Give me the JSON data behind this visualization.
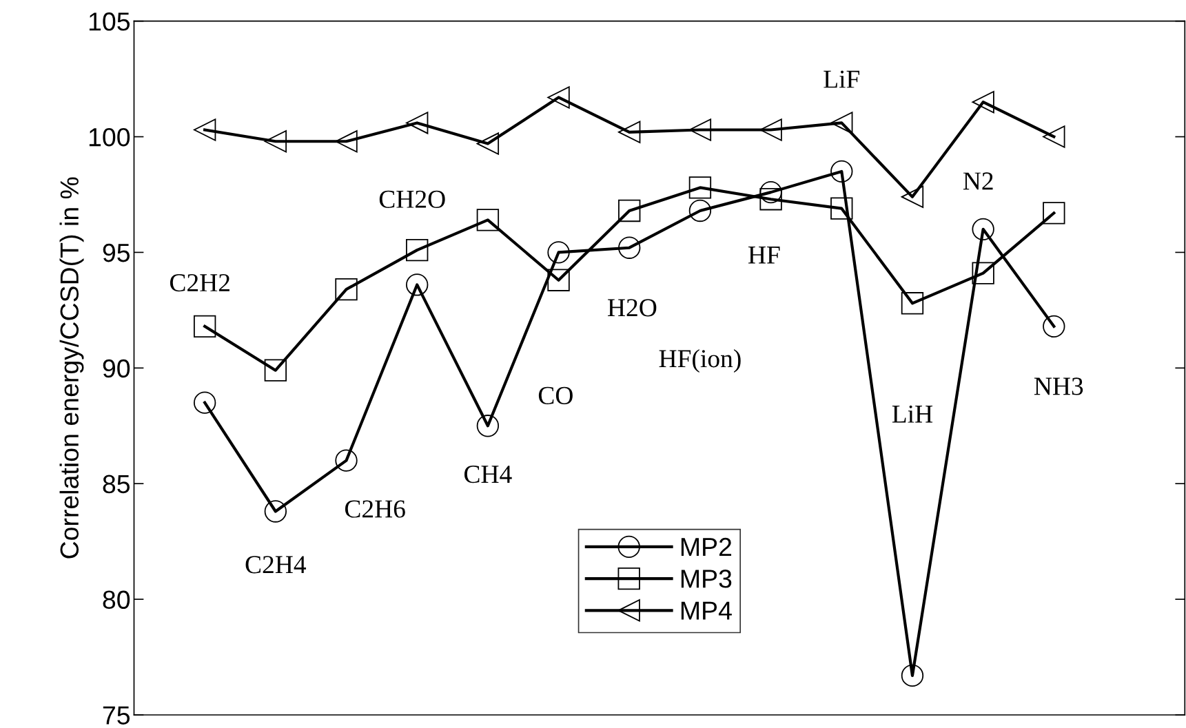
{
  "chart_data": {
    "type": "line",
    "ylabel": "Correlation energy/CCSD(T) in %",
    "categories": [
      null,
      null,
      null,
      null,
      null,
      null,
      null,
      null,
      null,
      null,
      null,
      null,
      null
    ],
    "series": [
      {
        "name": "MP2",
        "color": "#000000",
        "marker": "circle",
        "values": [
          88.5,
          83.8,
          86.0,
          93.6,
          87.5,
          95.0,
          95.2,
          96.8,
          97.6,
          98.5,
          76.7,
          96.0,
          91.8
        ]
      },
      {
        "name": "MP3",
        "color": "#000000",
        "marker": "square",
        "values": [
          91.8,
          89.9,
          93.4,
          95.1,
          96.4,
          93.8,
          96.8,
          97.8,
          97.3,
          96.9,
          92.8,
          94.1,
          96.7
        ]
      },
      {
        "name": "MP4",
        "color": "#000000",
        "marker": "triangle",
        "values": [
          100.3,
          99.8,
          99.8,
          100.6,
          99.7,
          101.7,
          100.2,
          100.3,
          100.3,
          100.6,
          97.4,
          101.5,
          100.0
        ]
      }
    ],
    "annotations": [
      "C2H2",
      "C2H4",
      "C2H6",
      "CH2O",
      "CH4",
      "CO",
      "H2O",
      "HF(ion)",
      "HF",
      "LiF",
      "LiH",
      "N2",
      "NH3"
    ],
    "ylim": [
      75,
      105
    ],
    "yticks": [
      75,
      80,
      85,
      90,
      95,
      100,
      105
    ],
    "grid": false,
    "legend": "bottom",
    "line_style": "solid",
    "tick_labels": "y"
  }
}
